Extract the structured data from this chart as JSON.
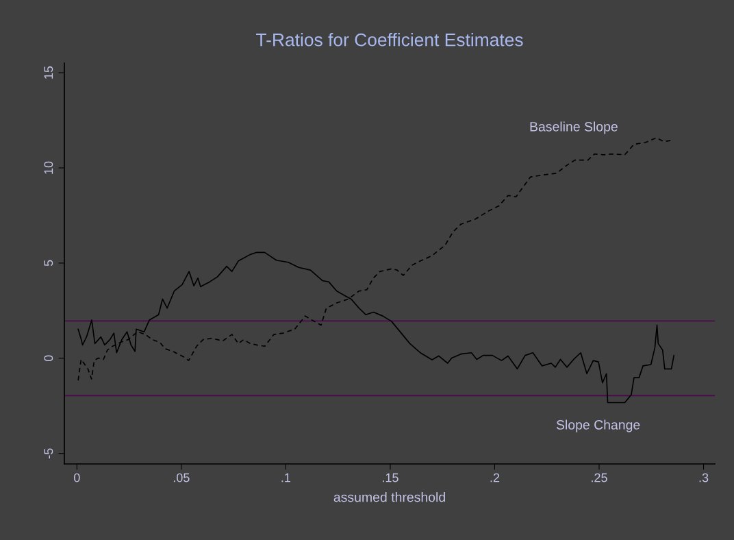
{
  "chart_data": {
    "type": "line",
    "title": "T-Ratios for Coefficient Estimates",
    "xlabel": "assumed threshold",
    "xlim": [
      -0.006,
      0.3054
    ],
    "ylim": [
      -5.55,
      15.5
    ],
    "xticks": [
      0,
      {
        "value": 0.05,
        "label": ".05"
      },
      {
        "value": 0.1,
        "label": ".1"
      },
      {
        "value": 0.15,
        "label": ".15"
      },
      {
        "value": 0.2,
        "label": ".2"
      },
      {
        "value": 0.25,
        "label": ".25"
      },
      {
        "value": 0.3,
        "label": ".3"
      }
    ],
    "yticks": [
      -5,
      0,
      5,
      10,
      15
    ],
    "grid": false,
    "legend": false,
    "marker": "none",
    "ref_lines": [
      {
        "axis": "y",
        "value": 1.96,
        "color": "#4b0b4b"
      },
      {
        "axis": "y",
        "value": -1.96,
        "color": "#4b0b4b"
      }
    ],
    "series": [
      {
        "name": "Baseline Slope",
        "color": "#000000",
        "line_style": "dashed",
        "x": [
          0.0006,
          0.002,
          0.0052,
          0.007,
          0.0083,
          0.0102,
          0.0127,
          0.0146,
          0.0171,
          0.0209,
          0.0246,
          0.029,
          0.0328,
          0.036,
          0.0397,
          0.0422,
          0.046,
          0.051,
          0.0535,
          0.0573,
          0.0604,
          0.0648,
          0.0698,
          0.0742,
          0.0773,
          0.0798,
          0.083,
          0.0861,
          0.0899,
          0.0943,
          0.0987,
          0.1043,
          0.1093,
          0.1125,
          0.1169,
          0.1194,
          0.1244,
          0.13,
          0.135,
          0.1388,
          0.1419,
          0.1451,
          0.1507,
          0.1533,
          0.1562,
          0.1606,
          0.1644,
          0.17,
          0.1763,
          0.18,
          0.1838,
          0.1907,
          0.197,
          0.202,
          0.2064,
          0.2102,
          0.2171,
          0.2233,
          0.2296,
          0.2346,
          0.2384,
          0.2446,
          0.2478,
          0.2522,
          0.256,
          0.2623,
          0.2667,
          0.2723,
          0.2773,
          0.2811,
          0.2848
        ],
        "values": [
          -1.16,
          -0.06,
          -0.54,
          -1.09,
          -0.12,
          0.01,
          -0.06,
          0.43,
          0.63,
          0.84,
          0.98,
          1.39,
          1.25,
          0.98,
          0.84,
          0.5,
          0.36,
          0.08,
          -0.12,
          0.63,
          0.98,
          1.05,
          0.91,
          1.25,
          0.77,
          0.98,
          0.77,
          0.7,
          0.63,
          1.25,
          1.32,
          1.53,
          2.22,
          2.01,
          1.74,
          2.63,
          2.91,
          3.11,
          3.53,
          3.6,
          4.21,
          4.56,
          4.7,
          4.63,
          4.35,
          4.9,
          5.11,
          5.39,
          5.94,
          6.63,
          7.04,
          7.31,
          7.73,
          8.0,
          8.55,
          8.48,
          9.52,
          9.63,
          9.72,
          10.14,
          10.41,
          10.41,
          10.73,
          10.69,
          10.73,
          10.69,
          11.24,
          11.34,
          11.58,
          11.38,
          11.45
        ]
      },
      {
        "name": "Slope Change",
        "color": "#000000",
        "line_style": "solid",
        "x": [
          0.0006,
          0.0021,
          0.0027,
          0.0046,
          0.0071,
          0.0086,
          0.0115,
          0.0133,
          0.0158,
          0.0177,
          0.019,
          0.0215,
          0.024,
          0.0259,
          0.0278,
          0.0284,
          0.0322,
          0.0347,
          0.0391,
          0.041,
          0.0432,
          0.0466,
          0.0504,
          0.0537,
          0.056,
          0.0579,
          0.0592,
          0.0635,
          0.0673,
          0.0717,
          0.0742,
          0.0773,
          0.083,
          0.0861,
          0.0899,
          0.0955,
          0.1012,
          0.1062,
          0.1118,
          0.1175,
          0.1206,
          0.1244,
          0.1289,
          0.1313,
          0.1351,
          0.1383,
          0.142,
          0.1464,
          0.1506,
          0.1594,
          0.1644,
          0.17,
          0.1732,
          0.1775,
          0.1794,
          0.1838,
          0.1889,
          0.1914,
          0.1945,
          0.1989,
          0.2033,
          0.2064,
          0.2108,
          0.2146,
          0.2183,
          0.2227,
          0.2271,
          0.229,
          0.2315,
          0.2346,
          0.2378,
          0.2412,
          0.2441,
          0.2472,
          0.2497,
          0.2516,
          0.2535,
          0.2541,
          0.2623,
          0.2654,
          0.2667,
          0.2691,
          0.271,
          0.2748,
          0.2767,
          0.2777,
          0.2783,
          0.2804,
          0.2814,
          0.2846,
          0.2858
        ],
        "values": [
          1.53,
          0.98,
          0.7,
          1.12,
          2.01,
          0.77,
          1.12,
          0.7,
          0.98,
          1.32,
          0.29,
          0.98,
          1.39,
          0.7,
          0.36,
          1.53,
          1.39,
          2.01,
          2.29,
          3.11,
          2.63,
          3.53,
          3.87,
          4.56,
          3.8,
          4.21,
          3.76,
          4.01,
          4.28,
          4.83,
          4.56,
          5.11,
          5.45,
          5.56,
          5.56,
          5.15,
          5.04,
          4.77,
          4.63,
          4.08,
          4.01,
          3.53,
          3.25,
          3.11,
          2.63,
          2.29,
          2.42,
          2.22,
          1.94,
          0.77,
          0.29,
          -0.08,
          0.12,
          -0.26,
          0.01,
          0.22,
          0.29,
          -0.06,
          0.15,
          0.15,
          -0.12,
          0.12,
          -0.56,
          0.15,
          0.29,
          -0.4,
          -0.26,
          -0.47,
          -0.06,
          -0.47,
          -0.06,
          0.29,
          -0.81,
          -0.12,
          -0.19,
          -1.29,
          -0.81,
          -2.33,
          -2.33,
          -1.91,
          -1.02,
          -1.02,
          -0.4,
          -0.33,
          0.56,
          1.74,
          0.77,
          0.43,
          -0.56,
          -0.56,
          0.15
        ]
      }
    ]
  }
}
